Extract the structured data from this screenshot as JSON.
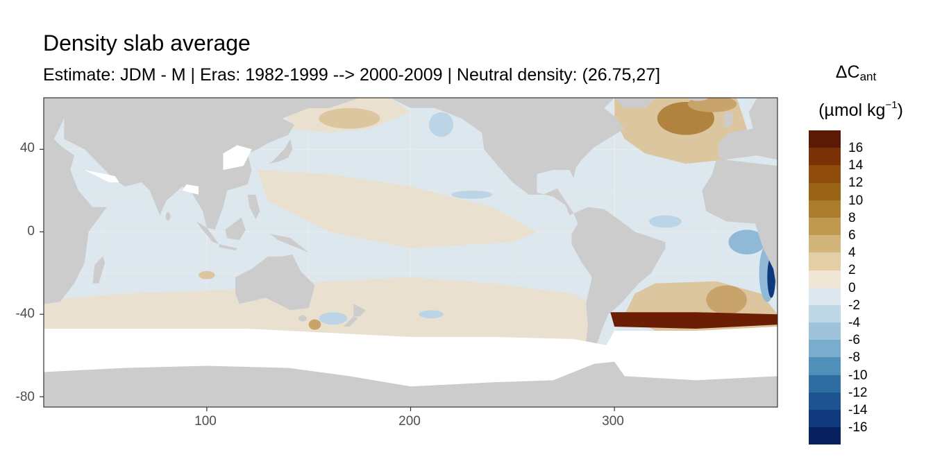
{
  "title": "Density slab average",
  "subtitle": "Estimate: JDM - M | Eras: 1982-1999 --> 2000-2009 | Neutral density: (26.75,27]",
  "legend": {
    "title_symbol": "ΔC",
    "title_sub": "ant",
    "unit_pre": "(µmol kg",
    "unit_sup": "−1",
    "unit_post": ")",
    "labels": [
      "16",
      "14",
      "12",
      "10",
      "8",
      "6",
      "4",
      "2",
      "0",
      "-2",
      "-4",
      "-6",
      "-8",
      "-10",
      "-12",
      "-14",
      "-16"
    ],
    "colors": [
      "#5b1a05",
      "#7a3206",
      "#8f4c0b",
      "#9a6416",
      "#ab7c2c",
      "#bf994e",
      "#d3b47b",
      "#e4cea5",
      "#efe6d6",
      "#dce7ee",
      "#bed7e7",
      "#9ec3da",
      "#7aaccd",
      "#4f8fba",
      "#2e6ea3",
      "#1c5390",
      "#103a7d",
      "#08225f"
    ]
  },
  "axes": {
    "x_ticks": [
      "100",
      "200",
      "300"
    ],
    "y_ticks": [
      "40",
      "0",
      "-40",
      "-80"
    ],
    "x_range": [
      20,
      380
    ],
    "y_range": [
      -85,
      65
    ]
  },
  "map_colors": {
    "land": "#cccccc",
    "masked": "#ffffff",
    "ocean_neutral": "#dde7ee",
    "ocean_warm_light": "#eae0cf",
    "ocean_warm": "#dcc6a0",
    "ocean_warm_mid": "#c8a46c",
    "ocean_warm_dark": "#b0843f",
    "ocean_cool": "#bcd5e6",
    "ocean_cool_mid": "#8fb9d6",
    "ocean_dark_blue": "#0d3a7c",
    "ocean_dark_brown": "#6b1e04",
    "grid": "#ebebeb"
  }
}
